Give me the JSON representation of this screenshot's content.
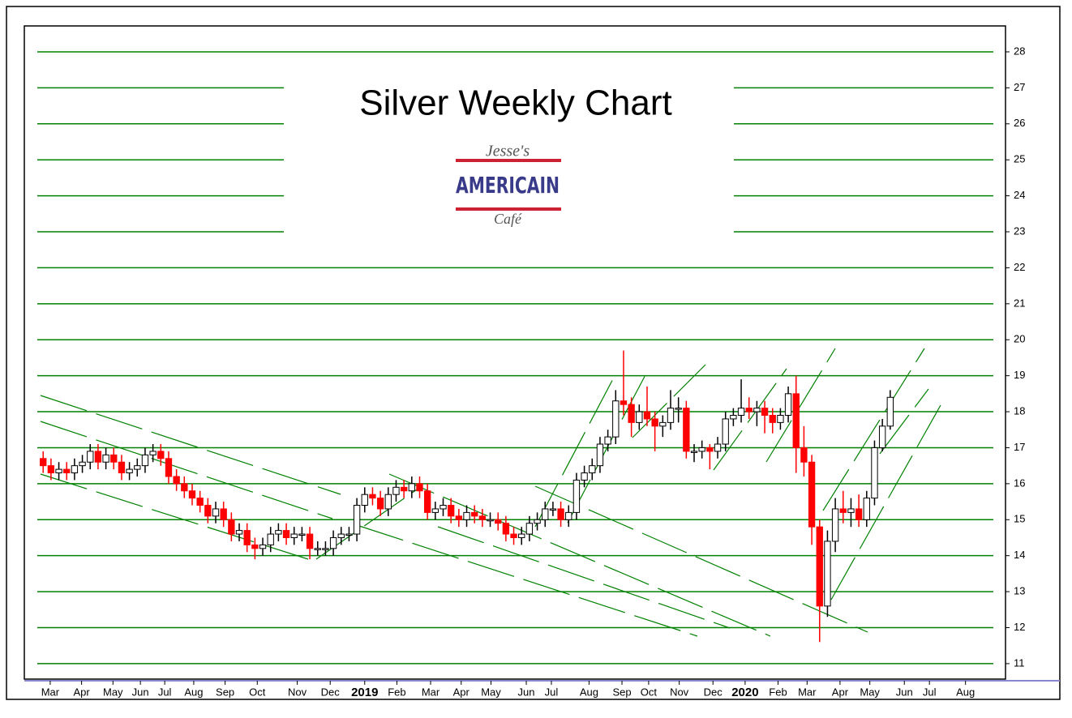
{
  "chart_data": {
    "type": "candlestick",
    "title": "Silver Weekly Chart",
    "logo_lines": [
      "Jesse's",
      "AMERICAIN",
      "Café"
    ],
    "x": [
      0,
      1,
      2,
      3,
      4,
      5,
      6,
      7,
      8,
      9,
      10,
      11,
      12,
      13,
      14,
      15,
      16,
      17,
      18,
      19,
      20,
      21,
      22,
      23,
      24,
      25,
      26,
      27,
      28,
      29,
      30,
      31,
      32,
      33,
      34,
      35,
      36,
      37,
      38,
      39,
      40,
      41,
      42,
      43,
      44,
      45,
      46,
      47,
      48,
      49,
      50,
      51,
      52,
      53,
      54,
      55,
      56,
      57,
      58,
      59,
      60,
      61,
      62,
      63,
      64,
      65,
      66,
      67,
      68,
      69,
      70,
      71,
      72,
      73,
      74,
      75,
      76,
      77,
      78,
      79,
      80,
      81,
      82,
      83,
      84,
      85,
      86,
      87,
      88,
      89,
      90,
      91,
      92,
      93,
      94,
      95,
      96,
      97,
      98,
      99,
      100,
      101,
      102,
      103,
      104,
      105,
      106,
      107,
      108
    ],
    "open": [
      16.7,
      16.5,
      16.3,
      16.4,
      16.3,
      16.5,
      16.6,
      16.9,
      16.6,
      16.8,
      16.6,
      16.3,
      16.4,
      16.5,
      16.8,
      16.9,
      16.7,
      16.2,
      16.0,
      15.8,
      15.6,
      15.4,
      15.1,
      15.3,
      15.0,
      14.6,
      14.7,
      14.3,
      14.2,
      14.3,
      14.6,
      14.7,
      14.5,
      14.6,
      14.6,
      14.2,
      14.2,
      14.2,
      14.5,
      14.6,
      14.6,
      15.4,
      15.7,
      15.6,
      15.3,
      15.7,
      15.9,
      15.8,
      16.0,
      15.8,
      15.2,
      15.3,
      15.4,
      15.1,
      15.0,
      15.2,
      15.1,
      15.0,
      15.0,
      14.9,
      14.6,
      14.5,
      14.6,
      14.9,
      15.0,
      15.3,
      15.3,
      15.0,
      15.2,
      16.1,
      16.3,
      16.5,
      17.1,
      17.3,
      18.3,
      18.2,
      17.7,
      18.0,
      17.8,
      17.6,
      17.7,
      18.1,
      18.1,
      16.9,
      16.9,
      17.0,
      16.9,
      17.1,
      17.8,
      17.9,
      18.1,
      18.0,
      18.1,
      17.9,
      17.7,
      17.9,
      18.5,
      17.0,
      16.6,
      14.8,
      12.6,
      14.4,
      15.3,
      15.2,
      15.3,
      15.0,
      15.6,
      17.0,
      17.6
    ],
    "high": [
      16.9,
      16.7,
      16.6,
      16.6,
      16.7,
      16.8,
      17.1,
      17.1,
      17.0,
      17.0,
      16.8,
      16.6,
      16.7,
      17.0,
      17.1,
      17.1,
      16.9,
      16.4,
      16.2,
      16.0,
      15.8,
      15.6,
      15.5,
      15.5,
      15.2,
      14.9,
      14.9,
      14.5,
      14.5,
      14.8,
      14.9,
      14.9,
      14.8,
      14.8,
      14.8,
      14.4,
      14.4,
      14.7,
      14.8,
      14.8,
      15.6,
      15.9,
      15.9,
      15.8,
      15.9,
      16.1,
      16.1,
      16.2,
      16.2,
      16.0,
      15.5,
      15.6,
      15.6,
      15.3,
      15.4,
      15.4,
      15.3,
      15.2,
      15.2,
      15.1,
      14.8,
      14.8,
      15.1,
      15.2,
      15.5,
      15.5,
      15.5,
      15.4,
      16.3,
      16.5,
      16.7,
      17.3,
      17.5,
      18.6,
      19.7,
      18.4,
      18.2,
      18.7,
      18.0,
      17.9,
      18.6,
      18.4,
      18.3,
      17.1,
      17.2,
      17.1,
      17.3,
      18.0,
      18.1,
      18.9,
      18.4,
      18.3,
      18.3,
      18.1,
      18.1,
      18.7,
      19.0,
      17.6,
      16.8,
      15.0,
      14.7,
      15.6,
      15.8,
      15.6,
      15.7,
      15.8,
      17.2,
      17.8,
      18.6
    ],
    "low": [
      16.3,
      16.1,
      16.1,
      16.1,
      16.1,
      16.3,
      16.4,
      16.4,
      16.4,
      16.4,
      16.1,
      16.1,
      16.2,
      16.3,
      16.6,
      16.5,
      16.0,
      15.8,
      15.6,
      15.4,
      15.2,
      14.9,
      14.9,
      14.8,
      14.4,
      14.4,
      14.1,
      13.9,
      14.0,
      14.1,
      14.4,
      14.3,
      14.3,
      14.4,
      13.9,
      14.0,
      14.0,
      14.0,
      14.3,
      14.4,
      14.4,
      15.2,
      15.4,
      15.1,
      15.1,
      15.5,
      15.6,
      15.6,
      15.6,
      15.0,
      15.0,
      15.1,
      14.9,
      14.8,
      14.8,
      14.9,
      14.8,
      14.8,
      14.7,
      14.4,
      14.3,
      14.3,
      14.4,
      14.7,
      14.8,
      15.1,
      14.8,
      14.8,
      15.0,
      15.9,
      16.1,
      16.3,
      16.9,
      17.1,
      17.9,
      17.3,
      17.5,
      17.6,
      16.9,
      17.3,
      17.5,
      17.7,
      16.7,
      16.6,
      16.7,
      16.4,
      16.7,
      16.9,
      17.6,
      17.7,
      17.8,
      17.6,
      17.4,
      17.4,
      17.5,
      17.7,
      16.3,
      16.2,
      14.3,
      11.6,
      12.3,
      14.1,
      14.9,
      14.8,
      14.8,
      14.8,
      15.4,
      16.9,
      17.5
    ],
    "close": [
      16.5,
      16.3,
      16.4,
      16.3,
      16.5,
      16.6,
      16.9,
      16.6,
      16.8,
      16.6,
      16.3,
      16.4,
      16.5,
      16.8,
      16.9,
      16.7,
      16.2,
      16.0,
      15.8,
      15.6,
      15.4,
      15.1,
      15.3,
      15.0,
      14.6,
      14.7,
      14.3,
      14.2,
      14.3,
      14.6,
      14.7,
      14.5,
      14.6,
      14.6,
      14.2,
      14.2,
      14.2,
      14.5,
      14.6,
      14.6,
      15.4,
      15.7,
      15.6,
      15.3,
      15.7,
      15.9,
      15.8,
      16.0,
      15.8,
      15.2,
      15.3,
      15.4,
      15.1,
      15.0,
      15.2,
      15.1,
      15.0,
      15.0,
      14.9,
      14.6,
      14.5,
      14.6,
      14.9,
      15.0,
      15.3,
      15.3,
      15.0,
      15.2,
      16.1,
      16.3,
      16.5,
      17.1,
      17.3,
      18.3,
      18.2,
      17.7,
      18.0,
      17.8,
      17.6,
      17.7,
      18.1,
      18.1,
      16.9,
      16.9,
      17.0,
      16.9,
      17.1,
      17.8,
      17.9,
      18.1,
      18.0,
      18.1,
      17.9,
      17.7,
      17.9,
      18.5,
      17.0,
      16.6,
      14.8,
      12.6,
      14.4,
      15.3,
      15.2,
      15.3,
      15.0,
      15.6,
      17.0,
      17.6,
      18.4
    ],
    "up_color": "#ffffff",
    "down_color": "#ff0000",
    "grid_color": "#008000",
    "grid": true,
    "xlim": [
      -2.4,
      122.7
    ],
    "xticks": [
      {
        "value": 0.9,
        "label": "Mar"
      },
      {
        "value": 4.9,
        "label": "Apr"
      },
      {
        "value": 8.9,
        "label": "May"
      },
      {
        "value": 12.4,
        "label": "Jun"
      },
      {
        "value": 15.5,
        "label": "Jul"
      },
      {
        "value": 19.2,
        "label": "Aug"
      },
      {
        "value": 23.2,
        "label": "Sep"
      },
      {
        "value": 27.3,
        "label": "Oct"
      },
      {
        "value": 32.4,
        "label": "Nov"
      },
      {
        "value": 36.6,
        "label": "Dec"
      },
      {
        "value": 41.0,
        "label": "2019"
      },
      {
        "value": 45.1,
        "label": "Feb"
      },
      {
        "value": 49.4,
        "label": "Mar"
      },
      {
        "value": 53.3,
        "label": "Apr"
      },
      {
        "value": 57.1,
        "label": "May"
      },
      {
        "value": 61.6,
        "label": "Jun"
      },
      {
        "value": 64.8,
        "label": "Jul"
      },
      {
        "value": 69.6,
        "label": "Aug"
      },
      {
        "value": 73.8,
        "label": "Sep"
      },
      {
        "value": 77.2,
        "label": "Oct"
      },
      {
        "value": 81.1,
        "label": "Nov"
      },
      {
        "value": 85.4,
        "label": "Dec"
      },
      {
        "value": 89.5,
        "label": "2020"
      },
      {
        "value": 93.7,
        "label": "Feb"
      },
      {
        "value": 97.4,
        "label": "Mar"
      },
      {
        "value": 101.6,
        "label": "Apr"
      },
      {
        "value": 105.4,
        "label": "May"
      },
      {
        "value": 109.8,
        "label": "Jun"
      },
      {
        "value": 113.0,
        "label": "Jul"
      },
      {
        "value": 117.6,
        "label": "Aug"
      }
    ],
    "ylim": [
      10.57,
      28.72
    ],
    "yticks": [
      11,
      12,
      13,
      14,
      15,
      16,
      17,
      18,
      19,
      20,
      21,
      22,
      23,
      24,
      25,
      26,
      27,
      28
    ]
  }
}
